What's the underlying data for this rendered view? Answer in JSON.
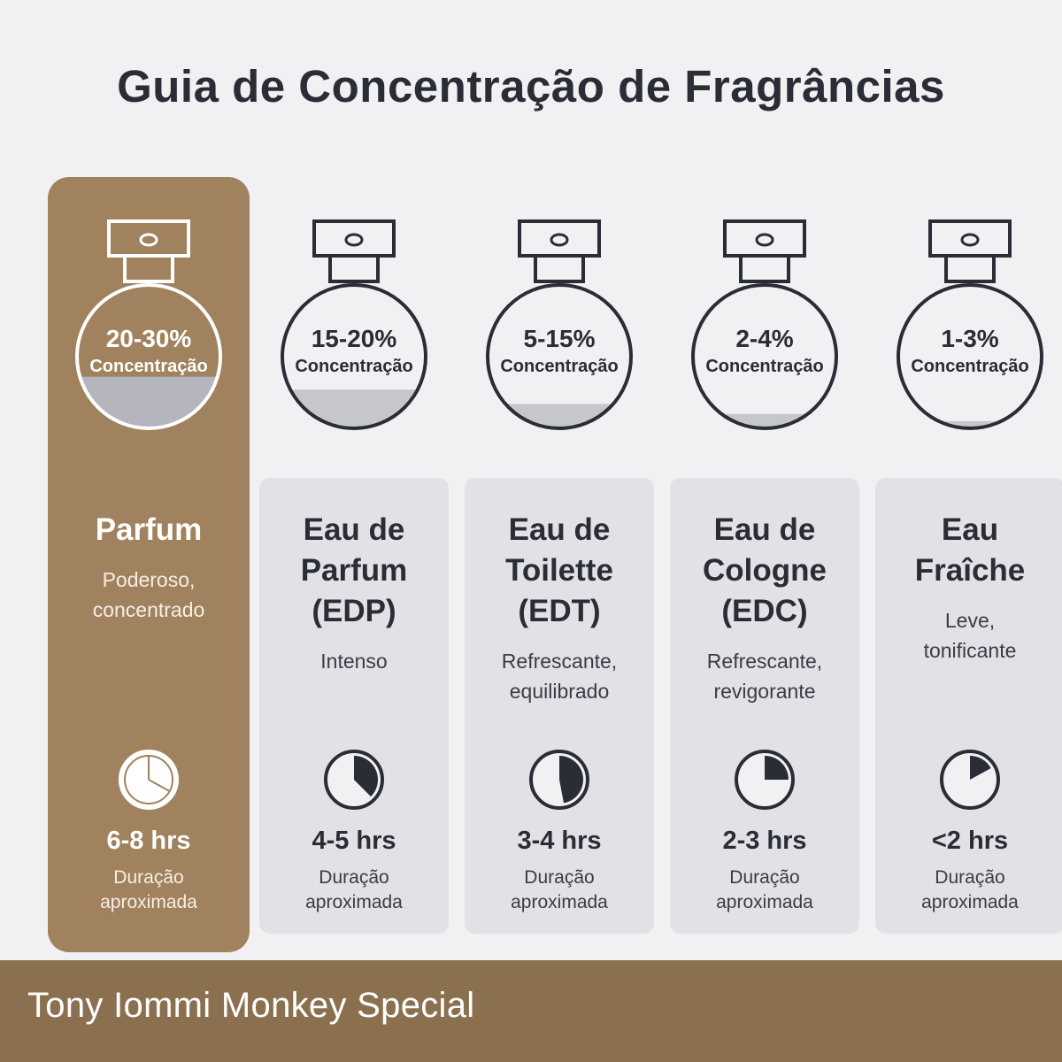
{
  "title": "Guia de Concentração de Fragrâncias",
  "concentration_label": "Concentração",
  "duration_label": "Duração aproximada",
  "colors": {
    "background": "#f1f1f3",
    "featured_card": "#a0825e",
    "card": "#e1e1e6",
    "dark": "#2a2c36",
    "liquid": "#c6c7cc",
    "footer": "#8b7050"
  },
  "icons": [
    "perfume-bottle-icon",
    "clock-icon"
  ],
  "fragrances": [
    {
      "name_lines": [
        "Parfum"
      ],
      "description_lines": [
        "Poderoso,",
        "concentrado"
      ],
      "concentration": "20-30%",
      "hours": "6-8 hrs",
      "fill_fraction": 0.36,
      "clock_fraction": 0.33
    },
    {
      "name_lines": [
        "Eau de",
        "Parfum",
        "(EDP)"
      ],
      "description_lines": [
        "Intenso"
      ],
      "concentration": "15-20%",
      "hours": "4-5 hrs",
      "fill_fraction": 0.27,
      "clock_fraction": 0.375
    },
    {
      "name_lines": [
        "Eau de",
        "Toilette",
        "(EDT)"
      ],
      "description_lines": [
        "Refrescante,",
        "equilibrado"
      ],
      "concentration": "5-15%",
      "hours": "3-4 hrs",
      "fill_fraction": 0.17,
      "clock_fraction": 0.47
    },
    {
      "name_lines": [
        "Eau de",
        "Cologne",
        "(EDC)"
      ],
      "description_lines": [
        "Refrescante,",
        "revigorante"
      ],
      "concentration": "2-4%",
      "hours": "2-3 hrs",
      "fill_fraction": 0.1,
      "clock_fraction": 0.25
    },
    {
      "name_lines": [
        "Eau",
        "Fraîche"
      ],
      "description_lines": [
        "Leve,",
        "tonificante"
      ],
      "concentration": "1-3%",
      "hours": "<2 hrs",
      "fill_fraction": 0.05,
      "clock_fraction": 0.17
    }
  ],
  "footer": "Tony Iommi Monkey Special"
}
